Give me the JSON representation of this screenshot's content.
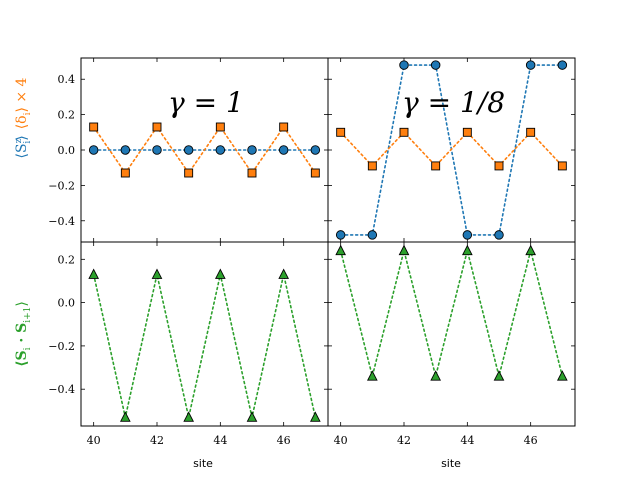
{
  "chart_data": {
    "type": "line",
    "colors": {
      "sz": "#1f77b4",
      "delta": "#ff7f0e",
      "ss": "#2ca02c"
    },
    "panels_top": [
      {
        "annotation": "γ = 1",
        "xlim": [
          39.6,
          47.4
        ],
        "ylim": [
          -0.52,
          0.52
        ],
        "series": [
          {
            "key": "sz",
            "marker": "circle",
            "x": [
              40,
              41,
              42,
              43,
              44,
              45,
              46,
              47
            ],
            "y": [
              0,
              0,
              0,
              0,
              0,
              0,
              0,
              0
            ]
          },
          {
            "key": "delta",
            "marker": "square",
            "x": [
              40,
              41,
              42,
              43,
              44,
              45,
              46,
              47
            ],
            "y": [
              0.13,
              -0.13,
              0.13,
              -0.13,
              0.13,
              -0.13,
              0.13,
              -0.13
            ]
          }
        ]
      },
      {
        "annotation": "γ = 1/8",
        "xlim": [
          39.6,
          47.4
        ],
        "ylim": [
          -0.52,
          0.52
        ],
        "series": [
          {
            "key": "sz",
            "marker": "circle",
            "x": [
              40,
              41,
              42,
              43,
              44,
              45,
              46,
              47
            ],
            "y": [
              -0.48,
              -0.48,
              0.48,
              0.48,
              -0.48,
              -0.48,
              0.48,
              0.48
            ]
          },
          {
            "key": "delta",
            "marker": "square",
            "x": [
              40,
              41,
              42,
              43,
              44,
              45,
              46,
              47
            ],
            "y": [
              0.1,
              -0.09,
              0.1,
              -0.09,
              0.1,
              -0.09,
              0.1,
              -0.09
            ]
          }
        ]
      }
    ],
    "panels_bottom": [
      {
        "xlim": [
          39.6,
          47.4
        ],
        "ylim": [
          -0.57,
          0.28
        ],
        "series": [
          {
            "key": "ss",
            "marker": "triangle",
            "x": [
              40,
              41,
              42,
              43,
              44,
              45,
              46,
              47
            ],
            "y": [
              0.13,
              -0.53,
              0.13,
              -0.53,
              0.13,
              -0.53,
              0.13,
              -0.53
            ]
          }
        ]
      },
      {
        "xlim": [
          39.6,
          47.4
        ],
        "ylim": [
          -0.57,
          0.28
        ],
        "series": [
          {
            "key": "ss",
            "marker": "triangle",
            "x": [
              40,
              41,
              42,
              43,
              44,
              45,
              46,
              47
            ],
            "y": [
              0.24,
              -0.34,
              0.24,
              -0.34,
              0.24,
              -0.34,
              0.24,
              -0.34
            ]
          }
        ]
      }
    ],
    "yticks_top": [
      -0.4,
      -0.2,
      0.0,
      0.2,
      0.4
    ],
    "yticks_top_labels": [
      "−0.4",
      "−0.2",
      "0.0",
      "0.2",
      "0.4"
    ],
    "yticks_bottom": [
      -0.4,
      -0.2,
      0.0,
      0.2
    ],
    "yticks_bottom_labels": [
      "−0.4",
      "−0.2",
      "0.0",
      "0.2"
    ],
    "xticks": [
      40,
      42,
      44,
      46
    ],
    "xticks_labels": [
      "40",
      "42",
      "44",
      "46"
    ],
    "xlabel": "site",
    "ylabel_top_sz": "⟨S",
    "ylabel_top_sz_sub": "i",
    "ylabel_top_sz_sup": "z",
    "ylabel_top_sz_close": "⟩",
    "ylabel_top_delta": "⟨δ",
    "ylabel_top_delta_sub": "i",
    "ylabel_top_delta_close": "⟩ × 4",
    "ylabel_bottom": "⟨S",
    "ylabel_bottom_sub1": "i",
    "ylabel_bottom_mid": " · S",
    "ylabel_bottom_sub2": "i+1",
    "ylabel_bottom_close": "⟩"
  }
}
